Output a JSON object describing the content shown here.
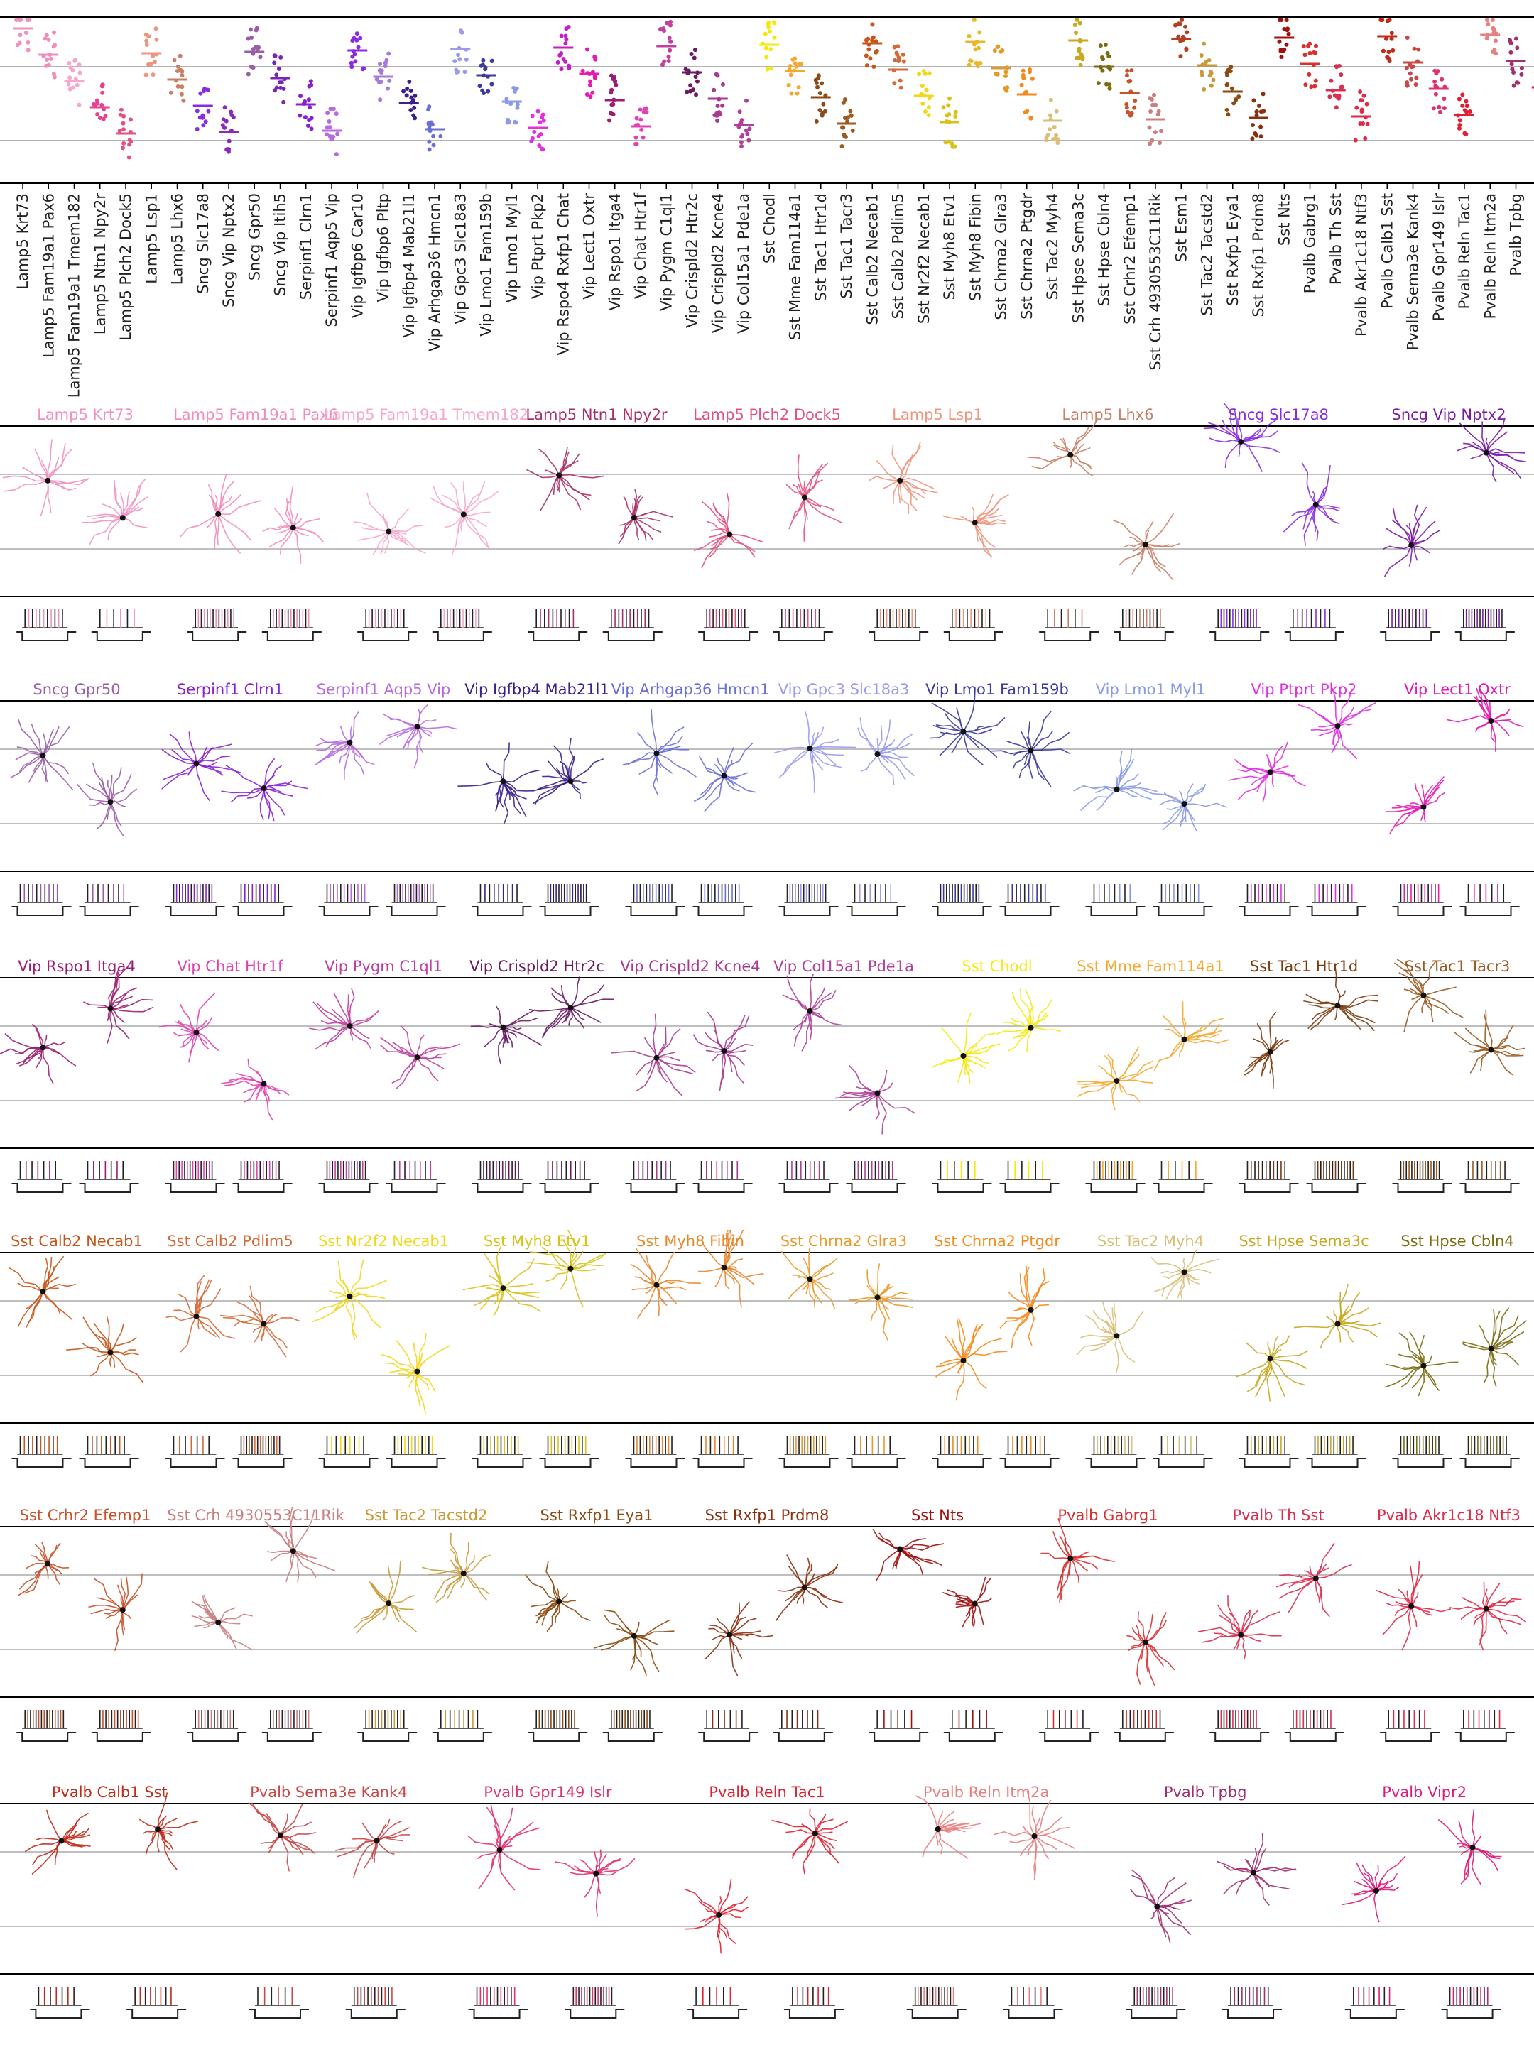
{
  "top_chart": {
    "categories": [
      {
        "label": "Lamp5 Krt73",
        "color": "#f191c2"
      },
      {
        "label": "Lamp5 Fam19a1 Pax6",
        "color": "#f28cba"
      },
      {
        "label": "Lamp5 Fam19a1 Tmem182",
        "color": "#f7a6cc"
      },
      {
        "label": "Lamp5 Ntn1 Npy2r",
        "color": "#e5438f"
      },
      {
        "label": "Lamp5 Plch2 Dock5",
        "color": "#e4517c"
      },
      {
        "label": "Lamp5 Lsp1",
        "color": "#f0957d"
      },
      {
        "label": "Lamp5 Lhx6",
        "color": "#c97e66"
      },
      {
        "label": "Sncg Slc17a8",
        "color": "#8a2ce0"
      },
      {
        "label": "Sncg Vip Nptx2",
        "color": "#8a2ab8"
      },
      {
        "label": "Sncg Gpr50",
        "color": "#9a5ea8"
      },
      {
        "label": "Sncg Vip Itih5",
        "color": "#7a26b0"
      },
      {
        "label": "Serpinf1 Clrn1",
        "color": "#8a1fd0"
      },
      {
        "label": "Serpinf1 Aqp5 Vip",
        "color": "#b86bdf"
      },
      {
        "label": "Vip Igfbp6 Car10",
        "color": "#8a2be2"
      },
      {
        "label": "Vip Igfbp6 Pltp",
        "color": "#a57bd8"
      },
      {
        "label": "Vip Igfbp4 Mab21l1",
        "color": "#3b1f8a"
      },
      {
        "label": "Vip Arhgap36 Hmcn1",
        "color": "#6a6fd8"
      },
      {
        "label": "Vip Gpc3 Slc18a3",
        "color": "#9a9aef"
      },
      {
        "label": "Vip Lmo1 Fam159b",
        "color": "#3a3aa0"
      },
      {
        "label": "Vip Lmo1 Myl1",
        "color": "#8a9ae6"
      },
      {
        "label": "Vip Ptprt Pkp2",
        "color": "#e030e0"
      },
      {
        "label": "Vip Rspo4 Rxfp1 Chat",
        "color": "#c61ec6"
      },
      {
        "label": "Vip Lect1 Oxtr",
        "color": "#e41ab2"
      },
      {
        "label": "Vip Rspo1 Itga4",
        "color": "#9c1e72"
      },
      {
        "label": "Vip Chat Htr1f",
        "color": "#e043b0"
      },
      {
        "label": "Vip Pygm C1ql1",
        "color": "#c040a0"
      },
      {
        "label": "Vip Crispld2 Htr2c",
        "color": "#6a1a60"
      },
      {
        "label": "Vip Crispld2 Kcne4",
        "color": "#a83a90"
      },
      {
        "label": "Vip Col15a1 Pde1a",
        "color": "#b0409a"
      },
      {
        "label": "Sst Chodl",
        "color": "#f5e90c"
      },
      {
        "label": "Sst Mme Fam114a1",
        "color": "#f5a830"
      },
      {
        "label": "Sst Tac1 Htr1d",
        "color": "#8a4a1a"
      },
      {
        "label": "Sst Tac1 Tacr3",
        "color": "#9a5a20"
      },
      {
        "label": "Sst Calb2 Necab1",
        "color": "#c8561a"
      },
      {
        "label": "Sst Calb2 Pdlim5",
        "color": "#d46a3a"
      },
      {
        "label": "Sst Nr2f2 Necab1",
        "color": "#f2d71a"
      },
      {
        "label": "Sst Myh8 Etv1",
        "color": "#d8c21a"
      },
      {
        "label": "Sst Myh8 Fibin",
        "color": "#e8b82a"
      },
      {
        "label": "Sst Chrna2 Glra3",
        "color": "#e09a2a"
      },
      {
        "label": "Sst Chrna2 Ptgdr",
        "color": "#f58a1a"
      },
      {
        "label": "Sst Tac2 Myh4",
        "color": "#d8c07a"
      },
      {
        "label": "Sst Hpse Sema3c",
        "color": "#c8a820"
      },
      {
        "label": "Sst Hpse Cbln4",
        "color": "#7a6a10"
      },
      {
        "label": "Sst Crhr2 Efemp1",
        "color": "#c8502a"
      },
      {
        "label": "Sst Crh 4930553C11Rik",
        "color": "#c88080"
      },
      {
        "label": "Sst Esm1",
        "color": "#b04020"
      },
      {
        "label": "Sst Tac2 Tacstd2",
        "color": "#c89a3a"
      },
      {
        "label": "Sst Rxfp1 Eya1",
        "color": "#8a4a10"
      },
      {
        "label": "Sst Rxfp1 Prdm8",
        "color": "#8a3010"
      },
      {
        "label": "Sst Nts",
        "color": "#a01010"
      },
      {
        "label": "Pvalb Gabrg1",
        "color": "#d83030"
      },
      {
        "label": "Pvalb Th Sst",
        "color": "#d83050"
      },
      {
        "label": "Pvalb Akr1c18 Ntf3",
        "color": "#e02848"
      },
      {
        "label": "Pvalb Calb1 Sst",
        "color": "#c02a18"
      },
      {
        "label": "Pvalb Sema3e Kank4",
        "color": "#c84848"
      },
      {
        "label": "Pvalb Gpr149 Islr",
        "color": "#e03070"
      },
      {
        "label": "Pvalb Reln Tac1",
        "color": "#e02030"
      },
      {
        "label": "Pvalb Reln Itm2a",
        "color": "#e88080"
      },
      {
        "label": "Pvalb Tpbg",
        "color": "#a03070"
      },
      {
        "label": "Pvalb Vipr2",
        "color": "#e01a78"
      }
    ]
  },
  "rows": [
    {
      "types": [
        {
          "label": "Lamp5 Krt73",
          "color": "#f191c2"
        },
        {
          "label": "Lamp5 Fam19a1 Pax6",
          "color": "#f28cba"
        },
        {
          "label": "Lamp5 Fam19a1 Tmem182",
          "color": "#f7a6cc"
        },
        {
          "label": "Lamp5 Ntn1 Npy2r",
          "color": "#a8306a"
        },
        {
          "label": "Lamp5 Plch2 Dock5",
          "color": "#e4517c"
        },
        {
          "label": "Lamp5 Lsp1",
          "color": "#f0957d"
        },
        {
          "label": "Lamp5 Lhx6",
          "color": "#c97e66"
        },
        {
          "label": "Sncg Slc17a8",
          "color": "#8a2ce0"
        },
        {
          "label": "Sncg Vip Nptx2",
          "color": "#7a1aa8"
        }
      ]
    },
    {
      "types": [
        {
          "label": "Sncg Gpr50",
          "color": "#9a5ea8"
        },
        {
          "label": "Serpinf1 Clrn1",
          "color": "#8a1fd0"
        },
        {
          "label": "Serpinf1 Aqp5 Vip",
          "color": "#b86bdf"
        },
        {
          "label": "Vip Igfbp4 Mab21l1",
          "color": "#3b1f8a"
        },
        {
          "label": "Vip Arhgap36 Hmcn1",
          "color": "#6a6fd8"
        },
        {
          "label": "Vip Gpc3 Slc18a3",
          "color": "#9a9aef"
        },
        {
          "label": "Vip Lmo1 Fam159b",
          "color": "#3a3aa0"
        },
        {
          "label": "Vip Lmo1 Myl1",
          "color": "#8a9ae6"
        },
        {
          "label": "Vip Ptprt Pkp2",
          "color": "#e030e0"
        },
        {
          "label": "Vip Lect1 Oxtr",
          "color": "#e41ab2"
        }
      ]
    },
    {
      "types": [
        {
          "label": "Vip Rspo1 Itga4",
          "color": "#9c1e72"
        },
        {
          "label": "Vip Chat Htr1f",
          "color": "#e043b0"
        },
        {
          "label": "Vip Pygm C1ql1",
          "color": "#c040a0"
        },
        {
          "label": "Vip Crispld2 Htr2c",
          "color": "#6a1a60"
        },
        {
          "label": "Vip Crispld2 Kcne4",
          "color": "#a83a90"
        },
        {
          "label": "Vip Col15a1 Pde1a",
          "color": "#b0409a"
        },
        {
          "label": "Sst Chodl",
          "color": "#f5e90c"
        },
        {
          "label": "Sst Mme Fam114a1",
          "color": "#f5a830"
        },
        {
          "label": "Sst Tac1 Htr1d",
          "color": "#7a3a10"
        },
        {
          "label": "Sst Tac1 Tacr3",
          "color": "#9a5a20"
        }
      ]
    },
    {
      "types": [
        {
          "label": "Sst Calb2 Necab1",
          "color": "#c8561a"
        },
        {
          "label": "Sst Calb2 Pdlim5",
          "color": "#d46a3a"
        },
        {
          "label": "Sst Nr2f2 Necab1",
          "color": "#f2d71a"
        },
        {
          "label": "Sst Myh8 Etv1",
          "color": "#d8c21a"
        },
        {
          "label": "Sst Myh8 Fibin",
          "color": "#e8862a"
        },
        {
          "label": "Sst Chrna2 Glra3",
          "color": "#e89a2a"
        },
        {
          "label": "Sst Chrna2 Ptgdr",
          "color": "#f58a1a"
        },
        {
          "label": "Sst Tac2 Myh4",
          "color": "#d8c07a"
        },
        {
          "label": "Sst Hpse Sema3c",
          "color": "#c8a820"
        },
        {
          "label": "Sst Hpse Cbln4",
          "color": "#7a6a10"
        }
      ]
    },
    {
      "types": [
        {
          "label": "Sst Crhr2 Efemp1",
          "color": "#c8502a"
        },
        {
          "label": "Sst Crh 4930553C11Rik",
          "color": "#c88080"
        },
        {
          "label": "Sst Tac2 Tacstd2",
          "color": "#c89a3a"
        },
        {
          "label": "Sst Rxfp1 Eya1",
          "color": "#8a4a10"
        },
        {
          "label": "Sst Rxfp1 Prdm8",
          "color": "#8a3010"
        },
        {
          "label": "Sst Nts",
          "color": "#a01010"
        },
        {
          "label": "Pvalb Gabrg1",
          "color": "#d83030"
        },
        {
          "label": "Pvalb Th Sst",
          "color": "#d83050"
        },
        {
          "label": "Pvalb Akr1c18 Ntf3",
          "color": "#e02848"
        }
      ]
    },
    {
      "types": [
        {
          "label": "Pvalb Calb1 Sst",
          "color": "#c02a18"
        },
        {
          "label": "Pvalb Sema3e Kank4",
          "color": "#c84848"
        },
        {
          "label": "Pvalb Gpr149 Islr",
          "color": "#e03070"
        },
        {
          "label": "Pvalb Reln Tac1",
          "color": "#e02030"
        },
        {
          "label": "Pvalb Reln Itm2a",
          "color": "#e88080"
        },
        {
          "label": "Pvalb Tpbg",
          "color": "#a03070"
        },
        {
          "label": "Pvalb Vipr2",
          "color": "#e01a78"
        }
      ]
    }
  ]
}
